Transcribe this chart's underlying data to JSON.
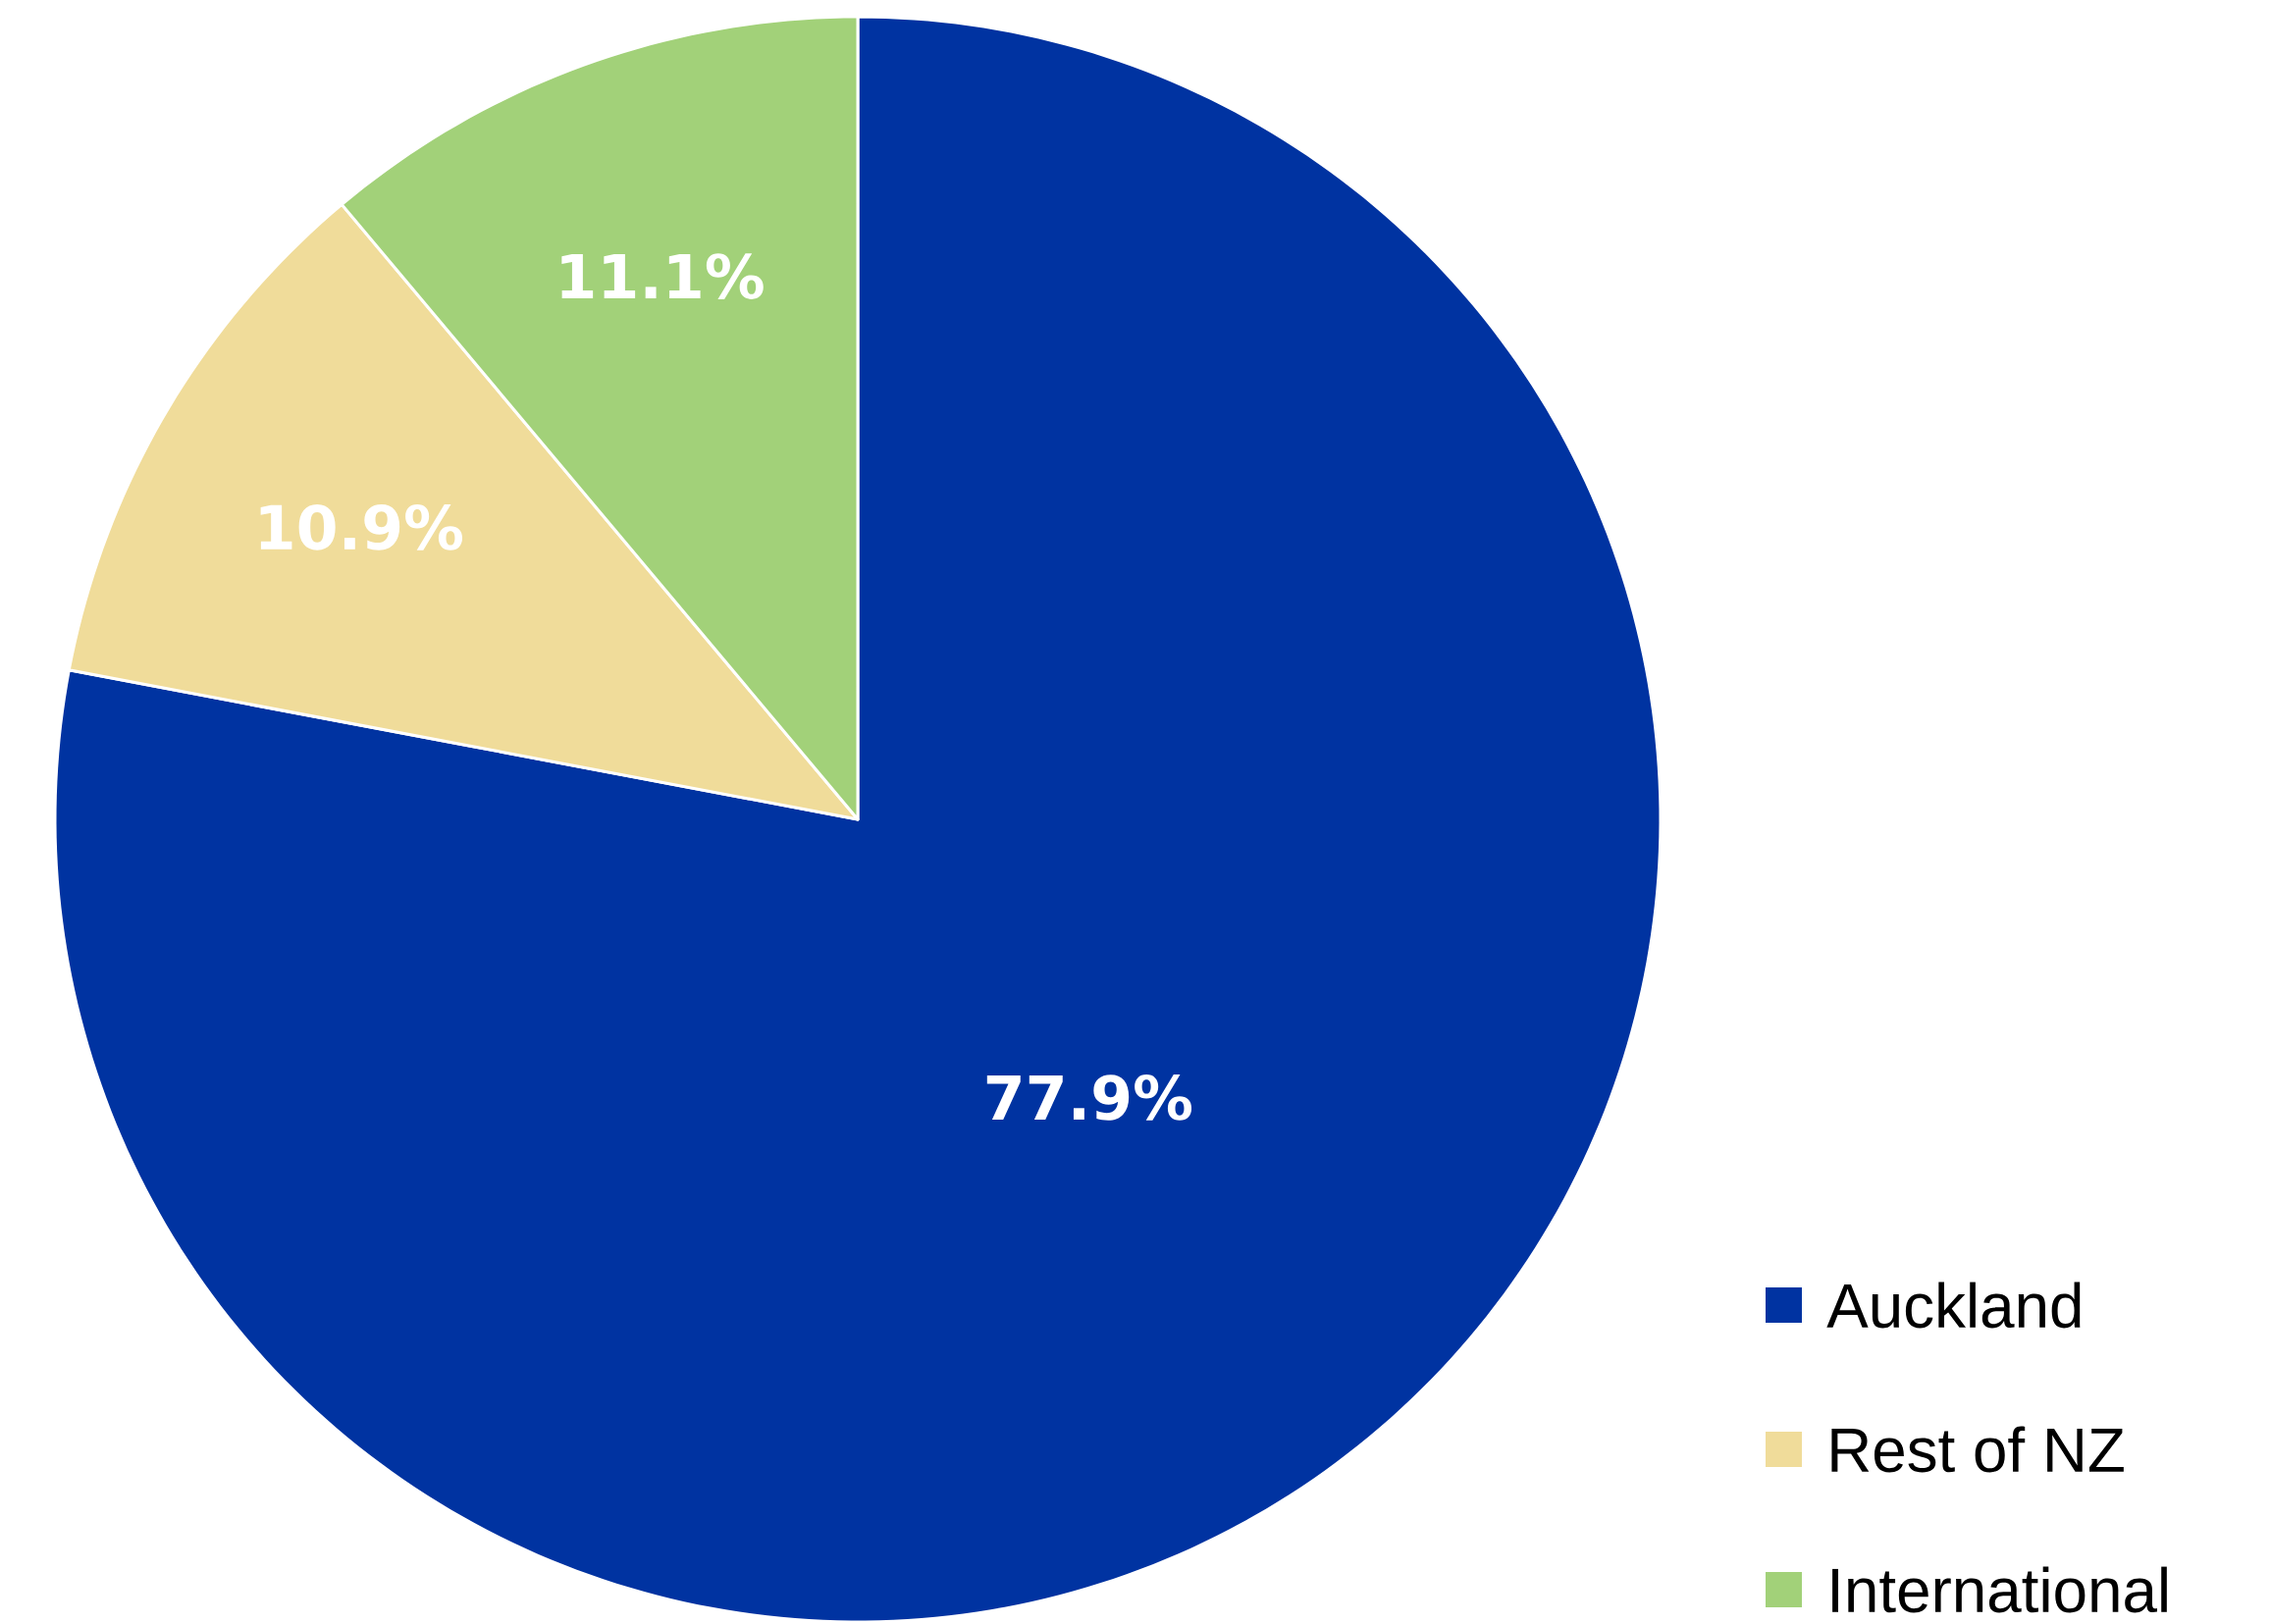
{
  "chart_data": {
    "type": "pie",
    "categories": [
      "Auckland",
      "Rest of NZ",
      "International"
    ],
    "values": [
      77.9,
      10.9,
      11.1
    ],
    "value_labels": [
      "77.9%",
      "10.9%",
      "11.1%"
    ],
    "colors": [
      "#0033a1",
      "#f0dc9a",
      "#a2d179"
    ],
    "legend": "bottom right"
  }
}
